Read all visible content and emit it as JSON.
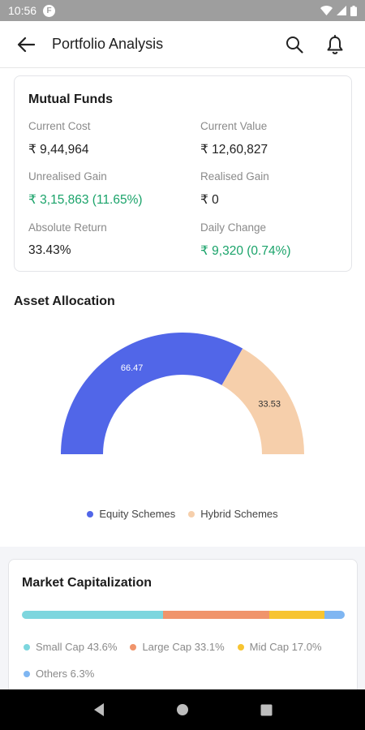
{
  "status_bar": {
    "time": "10:56",
    "app_icon": "F"
  },
  "header": {
    "title": "Portfolio Analysis"
  },
  "mutual_funds": {
    "title": "Mutual Funds",
    "current_cost_label": "Current Cost",
    "current_cost_value": "₹ 9,44,964",
    "current_value_label": "Current Value",
    "current_value_value": "₹ 12,60,827",
    "unrealised_gain_label": "Unrealised Gain",
    "unrealised_gain_value": "₹ 3,15,863 (11.65%)",
    "realised_gain_label": "Realised Gain",
    "realised_gain_value": "₹ 0",
    "absolute_return_label": "Absolute Return",
    "absolute_return_value": "33.43%",
    "daily_change_label": "Daily Change",
    "daily_change_value": "₹ 9,320 (0.74%)"
  },
  "asset_allocation": {
    "title": "Asset Allocation"
  },
  "chart_data": {
    "type": "pie",
    "categories": [
      "Equity Schemes",
      "Hybrid Schemes"
    ],
    "values": [
      66.47,
      33.53
    ],
    "value_labels": [
      "66.47",
      "33.53"
    ],
    "colors": [
      "#5166e8",
      "#f6cfab"
    ],
    "legend_position": "bottom"
  },
  "market_cap": {
    "title": "Market Capitalization",
    "segments": [
      {
        "label": "Small Cap 43.6%",
        "value": 43.6,
        "color": "#7dd6de"
      },
      {
        "label": "Large Cap 33.1%",
        "value": 33.1,
        "color": "#f0946b"
      },
      {
        "label": "Mid Cap 17.0%",
        "value": 17.0,
        "color": "#f7c431"
      },
      {
        "label": "Others 6.3%",
        "value": 6.3,
        "color": "#7fb6f2"
      }
    ]
  },
  "icons": {
    "back": "arrow-back-icon",
    "search": "search-icon",
    "notifications": "bell-icon"
  }
}
